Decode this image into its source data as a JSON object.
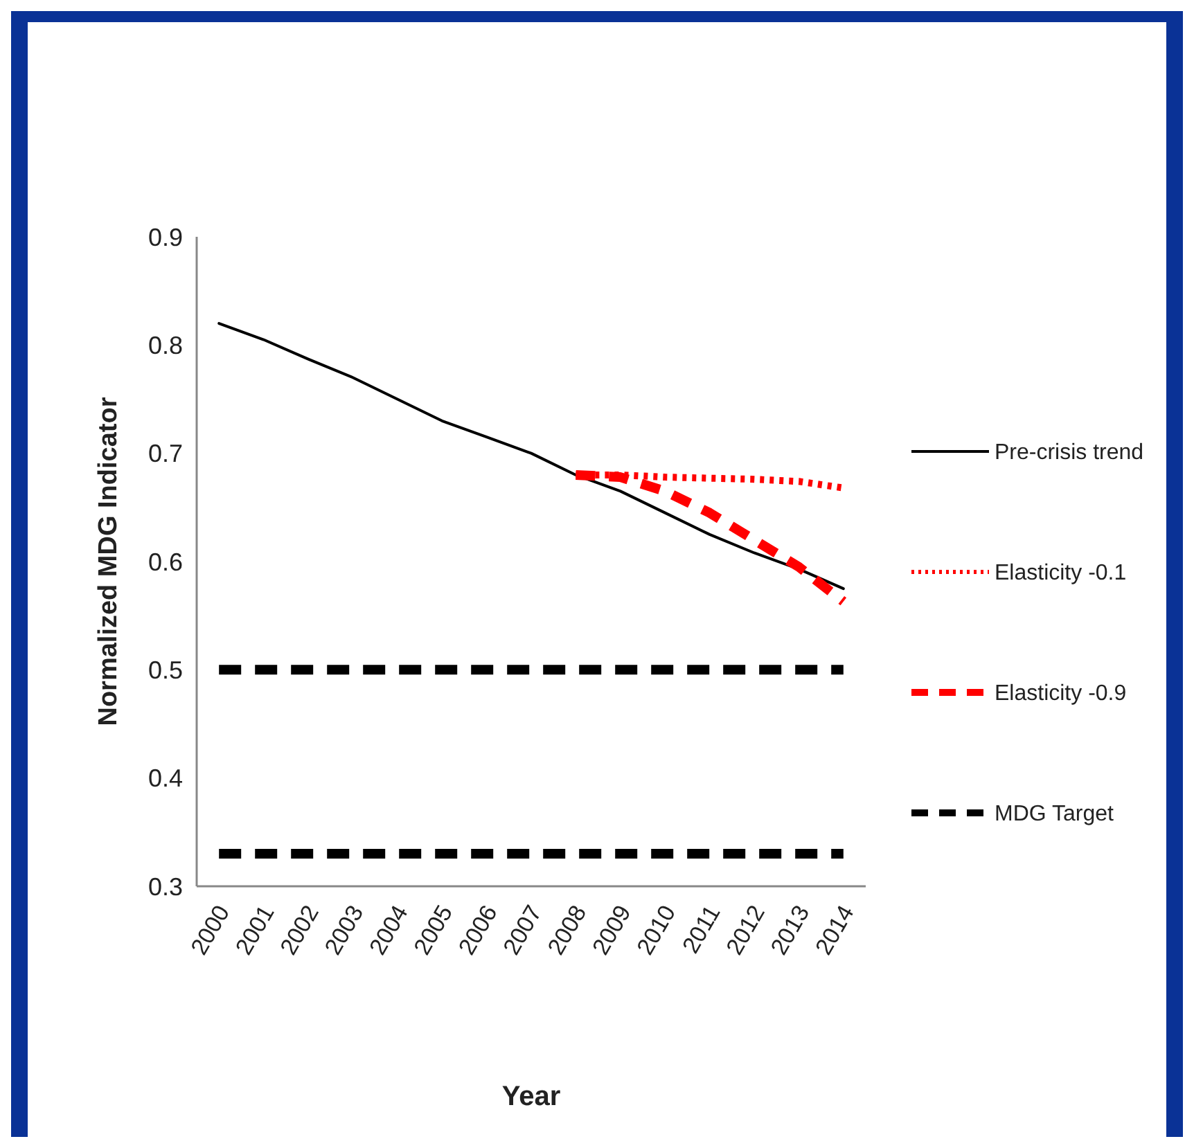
{
  "chart_data": {
    "type": "line",
    "xlabel": "Year",
    "ylabel": "Normalized MDG Indicator",
    "categories": [
      "2000",
      "2001",
      "2002",
      "2003",
      "2004",
      "2005",
      "2006",
      "2007",
      "2008",
      "2009",
      "2010",
      "2011",
      "2012",
      "2013",
      "2014"
    ],
    "ylim": [
      0.3,
      0.9
    ],
    "yticks": [
      0.3,
      0.4,
      0.5,
      0.6,
      0.7,
      0.8,
      0.9
    ],
    "grid": false,
    "legend": "right",
    "marker": "none",
    "series": [
      {
        "name": "Pre-crisis trend",
        "color": "#000000",
        "line_style": "solid",
        "values": [
          0.82,
          0.805,
          0.787,
          0.77,
          0.75,
          0.73,
          0.715,
          0.7,
          0.68,
          0.665,
          0.645,
          0.625,
          0.608,
          0.593,
          0.575
        ]
      },
      {
        "name": "Elasticity -0.1",
        "color": "#ff0000",
        "line_style": "dotted",
        "values": [
          null,
          null,
          null,
          null,
          null,
          null,
          null,
          null,
          0.68,
          0.68,
          0.678,
          0.677,
          0.676,
          0.674,
          0.668
        ]
      },
      {
        "name": "Elasticity -0.9",
        "color": "#ff0000",
        "line_style": "dashed",
        "values": [
          null,
          null,
          null,
          null,
          null,
          null,
          null,
          null,
          0.68,
          0.678,
          0.665,
          0.645,
          0.62,
          0.595,
          0.563
        ]
      },
      {
        "name": "MDG Target",
        "color": "#000000",
        "line_style": "dashed",
        "values": [
          0.5,
          0.5,
          0.5,
          0.5,
          0.5,
          0.5,
          0.5,
          0.5,
          0.5,
          0.5,
          0.5,
          0.5,
          0.5,
          0.5,
          0.5
        ]
      },
      {
        "color": "#000000",
        "line_style": "dashed",
        "values": [
          0.33,
          0.33,
          0.33,
          0.33,
          0.33,
          0.33,
          0.33,
          0.33,
          0.33,
          0.33,
          0.33,
          0.33,
          0.33,
          0.33,
          0.33
        ]
      }
    ]
  }
}
